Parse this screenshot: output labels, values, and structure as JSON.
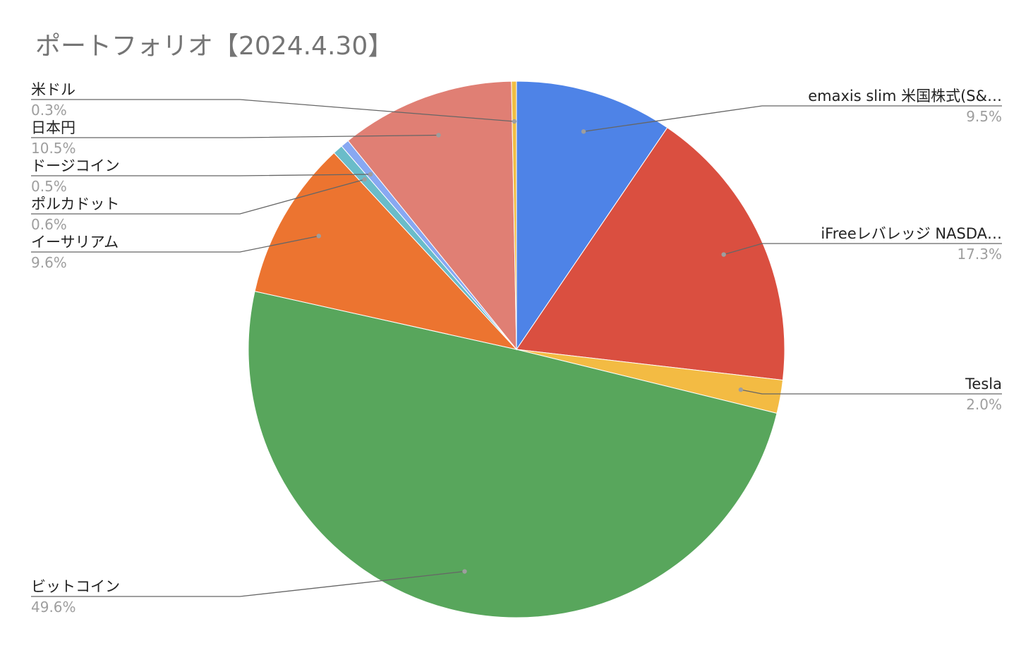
{
  "chart_data": {
    "type": "pie",
    "title": "ポートフォリオ【2024.4.30】",
    "start_angle_deg": 0,
    "direction": "clockwise",
    "legend": "labels-with-leader-lines",
    "slices": [
      {
        "label": "emaxis slim 米国株式(S&…",
        "value": 9.5,
        "value_label": "9.5%",
        "color": "#4e83e7"
      },
      {
        "label": "iFreeレバレッジ NASDA…",
        "value": 17.3,
        "value_label": "17.3%",
        "color": "#da4f40"
      },
      {
        "label": "Tesla",
        "value": 2.0,
        "value_label": "2.0%",
        "color": "#f3bb43"
      },
      {
        "label": "ビットコイン",
        "value": 49.6,
        "value_label": "49.6%",
        "color": "#58a65c"
      },
      {
        "label": "イーサリアム",
        "value": 9.6,
        "value_label": "9.6%",
        "color": "#ec7430"
      },
      {
        "label": "ポルカドット",
        "value": 0.6,
        "value_label": "0.6%",
        "color": "#6abcc9"
      },
      {
        "label": "ドージコイン",
        "value": 0.5,
        "value_label": "0.5%",
        "color": "#88a8f2"
      },
      {
        "label": "日本円",
        "value": 10.5,
        "value_label": "10.5%",
        "color": "#e07f74"
      },
      {
        "label": "米ドル",
        "value": 0.3,
        "value_label": "0.3%",
        "color": "#f0be43"
      }
    ]
  }
}
